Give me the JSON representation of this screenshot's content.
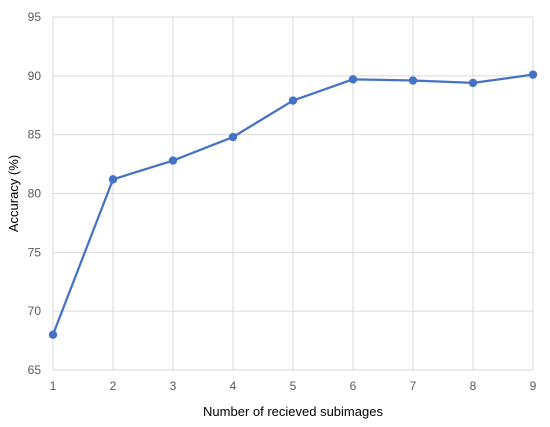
{
  "chart_data": {
    "type": "line",
    "title": "",
    "xlabel": "Number of recieved subimages",
    "ylabel": "Accuracy (%)",
    "x": [
      1,
      2,
      3,
      4,
      5,
      6,
      7,
      8,
      9
    ],
    "series": [
      {
        "values": [
          68.0,
          81.2,
          82.8,
          84.8,
          87.9,
          89.7,
          89.6,
          89.4,
          90.1
        ]
      }
    ],
    "xlim": [
      1,
      9
    ],
    "ylim": [
      65,
      95
    ],
    "xticks": [
      "1",
      "2",
      "3",
      "4",
      "5",
      "6",
      "7",
      "8",
      "9"
    ],
    "yticks": [
      "65",
      "70",
      "75",
      "80",
      "85",
      "90",
      "95"
    ],
    "grid": true,
    "legend": "none",
    "colors": {
      "line": "#4472c4",
      "grid": "#d9d9d9",
      "tick_text": "#595959"
    }
  }
}
